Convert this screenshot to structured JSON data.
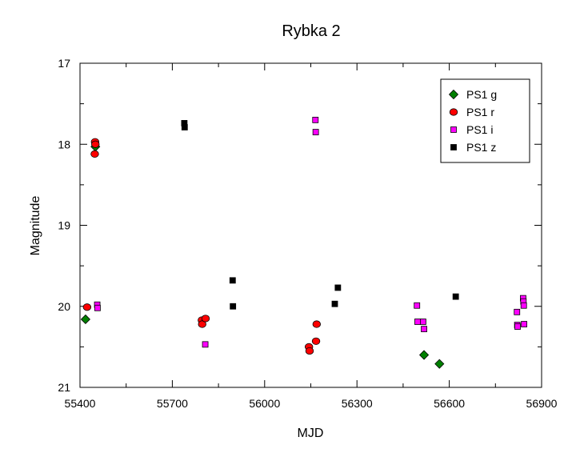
{
  "chart_data": {
    "type": "scatter",
    "title": "Rybka 2",
    "xlabel": "MJD",
    "ylabel": "Magnitude",
    "xlim": [
      55400,
      56900
    ],
    "ylim": [
      17,
      21
    ],
    "y_inverted": true,
    "x_ticks": [
      55400,
      55700,
      56000,
      56300,
      56600,
      56900
    ],
    "y_ticks": [
      17,
      18,
      19,
      20,
      21
    ],
    "grid": false,
    "legend_position": "top-right",
    "series": [
      {
        "name": "PS1 g",
        "marker": "diamond",
        "color": "#008000",
        "points": [
          {
            "x": 55418,
            "y": 20.16
          },
          {
            "x": 55450,
            "y": 18.03
          },
          {
            "x": 56518,
            "y": 20.6
          },
          {
            "x": 56568,
            "y": 20.71
          }
        ]
      },
      {
        "name": "PS1 r",
        "marker": "circle",
        "color": "#ff0000",
        "points": [
          {
            "x": 55423,
            "y": 20.01
          },
          {
            "x": 55448,
            "y": 18.12
          },
          {
            "x": 55449,
            "y": 17.97
          },
          {
            "x": 55450,
            "y": 18.0
          },
          {
            "x": 55796,
            "y": 20.17
          },
          {
            "x": 55797,
            "y": 20.22
          },
          {
            "x": 55808,
            "y": 20.15
          },
          {
            "x": 56144,
            "y": 20.5
          },
          {
            "x": 56146,
            "y": 20.55
          },
          {
            "x": 56167,
            "y": 20.43
          },
          {
            "x": 56169,
            "y": 20.22
          }
        ]
      },
      {
        "name": "PS1 i",
        "marker": "square",
        "color": "#ff00ff",
        "points": [
          {
            "x": 55456,
            "y": 19.98
          },
          {
            "x": 55457,
            "y": 20.02
          },
          {
            "x": 55807,
            "y": 20.47
          },
          {
            "x": 56165,
            "y": 17.7
          },
          {
            "x": 56166,
            "y": 17.85
          },
          {
            "x": 56495,
            "y": 19.99
          },
          {
            "x": 56497,
            "y": 20.19
          },
          {
            "x": 56515,
            "y": 20.19
          },
          {
            "x": 56518,
            "y": 20.28
          },
          {
            "x": 56820,
            "y": 20.07
          },
          {
            "x": 56821,
            "y": 20.23
          },
          {
            "x": 56822,
            "y": 20.25
          },
          {
            "x": 56840,
            "y": 19.9
          },
          {
            "x": 56841,
            "y": 19.94
          },
          {
            "x": 56842,
            "y": 19.99
          },
          {
            "x": 56843,
            "y": 20.22
          }
        ]
      },
      {
        "name": "PS1 z",
        "marker": "square",
        "color": "#000000",
        "points": [
          {
            "x": 55739,
            "y": 17.74
          },
          {
            "x": 55740,
            "y": 17.79
          },
          {
            "x": 55896,
            "y": 19.68
          },
          {
            "x": 55897,
            "y": 20.0
          },
          {
            "x": 56228,
            "y": 19.97
          },
          {
            "x": 56238,
            "y": 19.77
          },
          {
            "x": 56621,
            "y": 19.88
          }
        ]
      }
    ]
  }
}
